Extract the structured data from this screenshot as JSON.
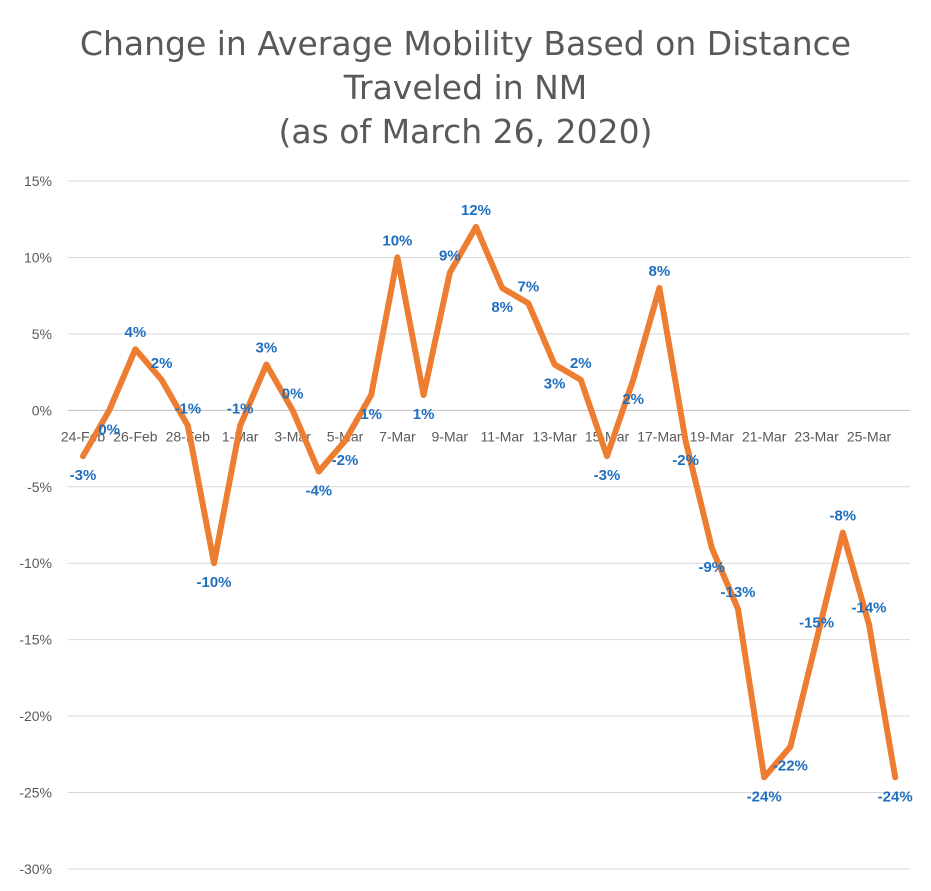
{
  "chart_data": {
    "type": "line",
    "title_lines": [
      "Change in Average Mobility Based on Distance",
      "Traveled in NM",
      "(as of March 26, 2020)"
    ],
    "xlabel": "",
    "ylabel": "",
    "ylim": [
      -30,
      15
    ],
    "y_ticks": [
      15,
      10,
      5,
      0,
      -5,
      -10,
      -15,
      -20,
      -25,
      -30
    ],
    "y_tick_labels": [
      "15%",
      "10%",
      "5%",
      "0%",
      "-5%",
      "-10%",
      "-15%",
      "-20%",
      "-25%",
      "-30%"
    ],
    "x": [
      "24-Feb",
      "25-Feb",
      "26-Feb",
      "27-Feb",
      "28-Feb",
      "29-Feb",
      "1-Mar",
      "2-Mar",
      "3-Mar",
      "4-Mar",
      "5-Mar",
      "6-Mar",
      "7-Mar",
      "8-Mar",
      "9-Mar",
      "10-Mar",
      "11-Mar",
      "12-Mar",
      "13-Mar",
      "14-Mar",
      "15-Mar",
      "16-Mar",
      "17-Mar",
      "18-Mar",
      "19-Mar",
      "20-Mar",
      "21-Mar",
      "22-Mar",
      "23-Mar",
      "24-Mar",
      "25-Mar",
      "26-Mar"
    ],
    "x_tick_labels": [
      "24-Feb",
      "26-Feb",
      "28-Feb",
      "1-Mar",
      "3-Mar",
      "5-Mar",
      "7-Mar",
      "9-Mar",
      "11-Mar",
      "13-Mar",
      "15-Mar",
      "17-Mar",
      "19-Mar",
      "21-Mar",
      "23-Mar",
      "25-Mar"
    ],
    "series": [
      {
        "values": [
          -3,
          0,
          4,
          2,
          -1,
          -10,
          -1,
          3,
          0,
          -4,
          -2,
          1,
          10,
          1,
          9,
          12,
          8,
          7,
          3,
          2,
          -3,
          2,
          8,
          -2,
          -9,
          -13,
          -24,
          -22,
          -15,
          -8,
          -14,
          -24
        ],
        "data_labels": [
          "-3%",
          "0%",
          "4%",
          "2%",
          "-1%",
          "-10%",
          "-1%",
          "3%",
          "0%",
          "-4%",
          "-2%",
          "1%",
          "10%",
          "1%",
          "9%",
          "12%",
          "8%",
          "7%",
          "3%",
          "2%",
          "-3%",
          "2%",
          "8%",
          "-2%",
          "-9%",
          "-13%",
          "-24%",
          "-22%",
          "-15%",
          "-8%",
          "-14%",
          "-24%"
        ],
        "color": "#ED7D31"
      }
    ],
    "data_label_color": "#1F6FBF",
    "grid": true,
    "legend": "none"
  }
}
